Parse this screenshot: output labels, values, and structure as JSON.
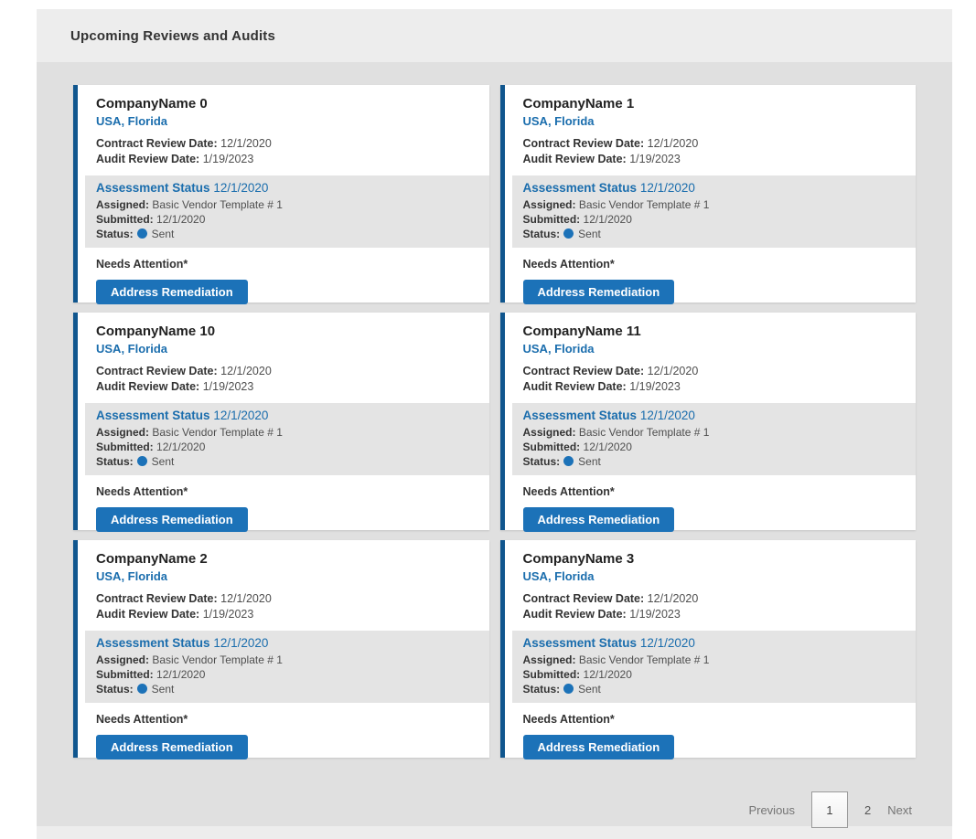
{
  "header": {
    "title": "Upcoming Reviews and Audits"
  },
  "labels": {
    "contract_review": "Contract Review Date:",
    "audit_review": "Audit Review Date:",
    "assessment_status": "Assessment Status",
    "assigned": "Assigned:",
    "submitted": "Submitted:",
    "status": "Status:",
    "needs_attention": "Needs Attention*",
    "address_remediation": "Address Remediation"
  },
  "cards": [
    {
      "company": "CompanyName 0",
      "location": "USA, Florida",
      "contract_date": "12/1/2020",
      "audit_date": "1/19/2023",
      "assessment_date": "12/1/2020",
      "assigned_template": "Basic Vendor Template # 1",
      "submitted_date": "12/1/2020",
      "status_value": "Sent"
    },
    {
      "company": "CompanyName 1",
      "location": "USA, Florida",
      "contract_date": "12/1/2020",
      "audit_date": "1/19/2023",
      "assessment_date": "12/1/2020",
      "assigned_template": "Basic Vendor Template # 1",
      "submitted_date": "12/1/2020",
      "status_value": "Sent"
    },
    {
      "company": "CompanyName 10",
      "location": "USA, Florida",
      "contract_date": "12/1/2020",
      "audit_date": "1/19/2023",
      "assessment_date": "12/1/2020",
      "assigned_template": "Basic Vendor Template # 1",
      "submitted_date": "12/1/2020",
      "status_value": "Sent"
    },
    {
      "company": "CompanyName 11",
      "location": "USA, Florida",
      "contract_date": "12/1/2020",
      "audit_date": "1/19/2023",
      "assessment_date": "12/1/2020",
      "assigned_template": "Basic Vendor Template # 1",
      "submitted_date": "12/1/2020",
      "status_value": "Sent"
    },
    {
      "company": "CompanyName 2",
      "location": "USA, Florida",
      "contract_date": "12/1/2020",
      "audit_date": "1/19/2023",
      "assessment_date": "12/1/2020",
      "assigned_template": "Basic Vendor Template # 1",
      "submitted_date": "12/1/2020",
      "status_value": "Sent"
    },
    {
      "company": "CompanyName 3",
      "location": "USA, Florida",
      "contract_date": "12/1/2020",
      "audit_date": "1/19/2023",
      "assessment_date": "12/1/2020",
      "assigned_template": "Basic Vendor Template # 1",
      "submitted_date": "12/1/2020",
      "status_value": "Sent"
    }
  ],
  "pagination": {
    "previous": "Previous",
    "pages": [
      "1",
      "2"
    ],
    "current": "1",
    "next": "Next"
  },
  "colors": {
    "accent-blue": "#1c72b8",
    "link-blue": "#1a6dad",
    "bar-blue": "#10568e",
    "panel-header-bg": "#ededed",
    "panel-body-bg": "#e0e0e0",
    "box-bg": "#e4e4e4"
  }
}
